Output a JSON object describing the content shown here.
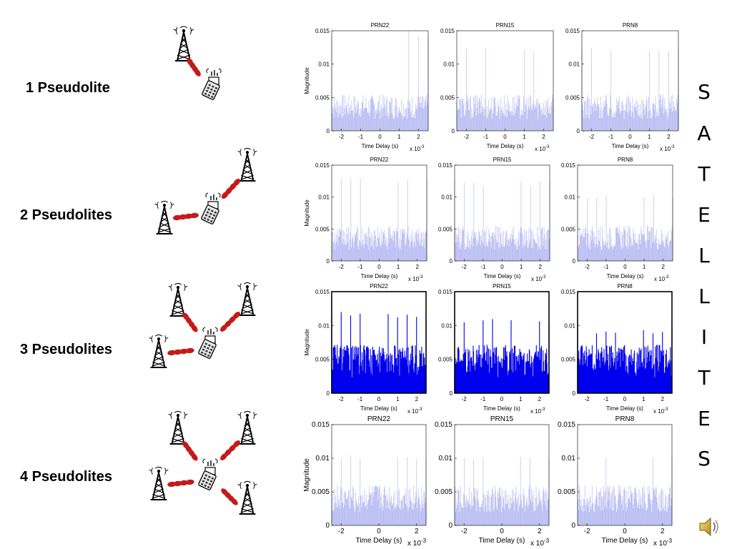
{
  "rows": [
    {
      "label": "1 Pseudolite",
      "pseudolites": 1
    },
    {
      "label": "2 Pseudolites",
      "pseudolites": 2
    },
    {
      "label": "3 Pseudolites",
      "pseudolites": 3
    },
    {
      "label": "4 Pseudolites",
      "pseudolites": 4
    }
  ],
  "side_text": "SATELLITES",
  "side_letters": [
    "S",
    "A",
    "T",
    "E",
    "L",
    "L",
    "I",
    "T",
    "E",
    "S"
  ],
  "speaker_icon": "speaker-icon",
  "colors": {
    "faint_series": "#b8bcf2",
    "strong_series": "#0000ee",
    "label": "#000000",
    "link_red": "#c41a1a"
  },
  "chart_data": [
    {
      "type": "line",
      "row": 1,
      "title": "PRN22",
      "xlabel": "Time Delay (s)",
      "ylabel": "Magnitude",
      "x_exponent": "x 10-3",
      "xlim": [
        -2.5,
        2.5
      ],
      "ylim": [
        0,
        0.015
      ],
      "xticks": [
        "-2",
        "-1",
        "0",
        "1",
        "2"
      ],
      "yticks": [
        "0",
        "0.005",
        "0.01",
        "0.015"
      ],
      "series": [
        {
          "peak_level": 0.015,
          "noise_level": 0.005
        }
      ]
    },
    {
      "type": "line",
      "row": 1,
      "title": "PRN15",
      "xlabel": "Time Delay (s)",
      "ylabel": "",
      "x_exponent": "x 10-3",
      "xlim": [
        -2.5,
        2.5
      ],
      "ylim": [
        0,
        0.015
      ],
      "xticks": [
        "-2",
        "-1",
        "0",
        "1",
        "2"
      ],
      "yticks": [
        "0",
        "0.005",
        "0.01",
        "0.015"
      ],
      "series": [
        {
          "peak_level": 0.0125,
          "noise_level": 0.005
        }
      ]
    },
    {
      "type": "line",
      "row": 1,
      "title": "PRN8",
      "xlabel": "Time Delay (s)",
      "ylabel": "",
      "x_exponent": "x 10-3",
      "xlim": [
        -2.5,
        2.5
      ],
      "ylim": [
        0,
        0.015
      ],
      "xticks": [
        "-2",
        "-1",
        "0",
        "1",
        "2"
      ],
      "yticks": [
        "0",
        "0.005",
        "0.01",
        "0.015"
      ],
      "series": [
        {
          "peak_level": 0.0125,
          "noise_level": 0.005
        }
      ]
    },
    {
      "type": "line",
      "row": 2,
      "title": "PRN22",
      "xlabel": "Time Delay (s)",
      "ylabel": "Magnitude",
      "x_exponent": "x 10-3",
      "xlim": [
        -2.5,
        2.5
      ],
      "ylim": [
        0,
        0.015
      ],
      "xticks": [
        "-2",
        "-1",
        "0",
        "1",
        "2"
      ],
      "yticks": [
        "0",
        "0.005",
        "0.01",
        "0.015"
      ],
      "series": [
        {
          "peak_level": 0.013,
          "noise_level": 0.005
        }
      ]
    },
    {
      "type": "line",
      "row": 2,
      "title": "PRN15",
      "xlabel": "Time Delay (s)",
      "ylabel": "",
      "x_exponent": "x 10-3",
      "xlim": [
        -2.5,
        2.5
      ],
      "ylim": [
        0,
        0.015
      ],
      "xticks": [
        "-2",
        "-1",
        "0",
        "1",
        "2"
      ],
      "yticks": [
        "0",
        "0.005",
        "0.01",
        "0.015"
      ],
      "series": [
        {
          "peak_level": 0.0125,
          "noise_level": 0.005
        }
      ]
    },
    {
      "type": "line",
      "row": 2,
      "title": "PRN8",
      "xlabel": "Time Delay (s)",
      "ylabel": "",
      "x_exponent": "x 10-3",
      "xlim": [
        -2.5,
        2.5
      ],
      "ylim": [
        0,
        0.015
      ],
      "xticks": [
        "-2",
        "-1",
        "0",
        "1",
        "2"
      ],
      "yticks": [
        "0",
        "0.005",
        "0.01",
        "0.015"
      ],
      "series": [
        {
          "peak_level": 0.0105,
          "noise_level": 0.005
        }
      ]
    },
    {
      "type": "line",
      "row": 3,
      "title": "PRN22",
      "xlabel": "Time Delay (s)",
      "ylabel": "Magnitude",
      "x_exponent": "x 10-3",
      "xlim": [
        -2.5,
        2.5
      ],
      "ylim": [
        0,
        0.015
      ],
      "xticks": [
        "-2",
        "-1",
        "0",
        "1",
        "2"
      ],
      "yticks": [
        "0",
        "0.005",
        "0.01",
        "0.015"
      ],
      "series": [
        {
          "peak_level": 0.012,
          "noise_level": 0.0065
        }
      ]
    },
    {
      "type": "line",
      "row": 3,
      "title": "PRN15",
      "xlabel": "Time Delay (s)",
      "ylabel": "",
      "x_exponent": "x 10-3",
      "xlim": [
        -2.5,
        2.5
      ],
      "ylim": [
        0,
        0.015
      ],
      "xticks": [
        "-2",
        "-1",
        "0",
        "1",
        "2"
      ],
      "yticks": [
        "0",
        "0.005",
        "0.01",
        "0.015"
      ],
      "series": [
        {
          "peak_level": 0.011,
          "noise_level": 0.0065
        }
      ]
    },
    {
      "type": "line",
      "row": 3,
      "title": "PRN8",
      "xlabel": "Time Delay (s)",
      "ylabel": "",
      "x_exponent": "x 10-3",
      "xlim": [
        -2.5,
        2.5
      ],
      "ylim": [
        0,
        0.015
      ],
      "xticks": [
        "-2",
        "-1",
        "0",
        "1",
        "2"
      ],
      "yticks": [
        "0",
        "0.005",
        "0.01",
        "0.015"
      ],
      "series": [
        {
          "peak_level": 0.0095,
          "noise_level": 0.0065
        }
      ]
    },
    {
      "type": "line",
      "row": 4,
      "title": "PRN22",
      "xlabel": "Time Delay (s)",
      "ylabel": "Magnitude",
      "x_exponent": "x 10-3",
      "xlim": [
        -2.5,
        2.5
      ],
      "ylim": [
        0,
        0.015
      ],
      "xticks": [
        "-2",
        "0",
        "2"
      ],
      "yticks": [
        "0",
        "0.005",
        "0.01",
        "0.015"
      ],
      "series": [
        {
          "peak_level": 0.0105,
          "noise_level": 0.0055
        }
      ]
    },
    {
      "type": "line",
      "row": 4,
      "title": "PRN15",
      "xlabel": "Time Delay (s)",
      "ylabel": "",
      "x_exponent": "x 10-3",
      "xlim": [
        -2.5,
        2.5
      ],
      "ylim": [
        0,
        0.015
      ],
      "xticks": [
        "-2",
        "0",
        "2"
      ],
      "yticks": [
        "0",
        "0.005",
        "0.01",
        "0.015"
      ],
      "series": [
        {
          "peak_level": 0.0105,
          "noise_level": 0.0055
        }
      ]
    },
    {
      "type": "line",
      "row": 4,
      "title": "PRN8",
      "xlabel": "Time Delay (s)",
      "ylabel": "",
      "x_exponent": "x 10-3",
      "xlim": [
        -2.5,
        2.5
      ],
      "ylim": [
        0,
        0.015
      ],
      "xticks": [
        "-2",
        "0",
        "2"
      ],
      "yticks": [
        "0",
        "0.005",
        "0.01",
        "0.015"
      ],
      "series": [
        {
          "peak_level": 0.0105,
          "noise_level": 0.0055
        }
      ]
    }
  ]
}
